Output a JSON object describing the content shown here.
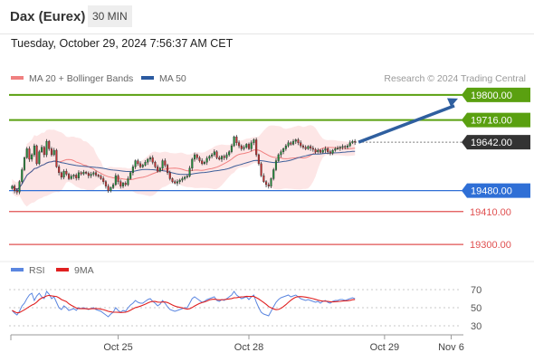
{
  "header": {
    "instrument": "Dax (Eurex)",
    "timeframe": "30 MIN",
    "datetime": "Tuesday, October 29, 2024 7:56:37 AM CET"
  },
  "chart_data": [
    {
      "type": "candlestick",
      "legend": [
        {
          "name": "MA 20 + Bollinger Bands",
          "color": "#f08080"
        },
        {
          "name": "MA 50",
          "color": "#2b5aa0"
        }
      ],
      "legend_placement": "top-left",
      "credit": "Research © 2024 Trading Central",
      "ylim": [
        19270,
        19830
      ],
      "x_ticks": [
        {
          "label": "Oct 25",
          "index": 43
        },
        {
          "label": "Oct 28",
          "index": 96
        },
        {
          "label": "Oct 29",
          "index": 151
        },
        {
          "label": "Nov 6",
          "index": 178
        }
      ],
      "levels": [
        {
          "label": "19800.00",
          "value": 19800,
          "kind": "resistance",
          "color": "#5aa010"
        },
        {
          "label": "19716.00",
          "value": 19716,
          "kind": "resistance",
          "color": "#5aa010"
        },
        {
          "label": "19642.00",
          "value": 19642,
          "kind": "last",
          "color": "#333333"
        },
        {
          "label": "19480.00",
          "value": 19480,
          "kind": "pivot",
          "color": "#2f6fd6"
        },
        {
          "label": "19410.00",
          "value": 19410,
          "kind": "support",
          "color": "#e05050"
        },
        {
          "label": "19300.00",
          "value": 19300,
          "kind": "support",
          "color": "#e05050"
        }
      ],
      "forecast_arrow": {
        "from": 19642,
        "to": 19800,
        "color": "#2f5f9f"
      },
      "close_series": [
        19495,
        19480,
        19475,
        19510,
        19550,
        19590,
        19620,
        19585,
        19600,
        19630,
        19570,
        19610,
        19625,
        19600,
        19645,
        19620,
        19600,
        19615,
        19560,
        19540,
        19525,
        19545,
        19535,
        19520,
        19528,
        19532,
        19522,
        19540,
        19536,
        19542,
        19538,
        19530,
        19535,
        19540,
        19532,
        19528,
        19520,
        19510,
        19495,
        19480,
        19490,
        19500,
        19530,
        19510,
        19495,
        19505,
        19500,
        19520,
        19540,
        19560,
        19580,
        19570,
        19560,
        19565,
        19575,
        19585,
        19590,
        19575,
        19560,
        19545,
        19555,
        19580,
        19565,
        19540,
        19520,
        19510,
        19505,
        19510,
        19515,
        19520,
        19525,
        19528,
        19555,
        19585,
        19600,
        19590,
        19580,
        19570,
        19575,
        19588,
        19595,
        19600,
        19610,
        19590,
        19585,
        19595,
        19590,
        19600,
        19610,
        19630,
        19660,
        19640,
        19630,
        19620,
        19625,
        19635,
        19620,
        19640,
        19650,
        19600,
        19570,
        19530,
        19510,
        19500,
        19495,
        19520,
        19550,
        19580,
        19600,
        19610,
        19620,
        19630,
        19640,
        19635,
        19645,
        19650,
        19640,
        19630,
        19625,
        19620,
        19628,
        19622,
        19618,
        19610,
        19615,
        19608,
        19615,
        19620,
        19610,
        19605,
        19615,
        19620,
        19622,
        19625,
        19628,
        19625,
        19630,
        19640,
        19645,
        19642
      ]
    },
    {
      "type": "line",
      "legend": [
        {
          "name": "RSI",
          "color": "#5b86e0"
        },
        {
          "name": "9MA",
          "color": "#e02020"
        }
      ],
      "ylim": [
        20,
        80
      ],
      "y_ticks": [
        70,
        50,
        30
      ],
      "rsi_series": [
        47,
        44,
        42,
        46,
        52,
        55,
        60,
        64,
        66,
        58,
        63,
        66,
        62,
        60,
        68,
        65,
        60,
        62,
        56,
        50,
        48,
        52,
        50,
        47,
        48,
        49,
        47,
        50,
        49,
        50,
        49,
        48,
        49,
        50,
        48,
        47,
        46,
        44,
        42,
        40,
        43,
        45,
        50,
        47,
        45,
        47,
        46,
        50,
        53,
        55,
        58,
        56,
        55,
        55,
        57,
        59,
        60,
        57,
        55,
        52,
        54,
        58,
        55,
        51,
        48,
        47,
        46,
        47,
        48,
        49,
        50,
        50,
        55,
        60,
        62,
        60,
        58,
        56,
        57,
        59,
        60,
        61,
        62,
        58,
        57,
        59,
        58,
        60,
        62,
        64,
        68,
        64,
        62,
        60,
        61,
        62,
        59,
        62,
        64,
        56,
        50,
        45,
        43,
        42,
        41,
        46,
        51,
        56,
        59,
        61,
        62,
        63,
        64,
        62,
        63,
        64,
        62,
        60,
        59,
        58,
        59,
        58,
        57,
        56,
        57,
        55,
        57,
        58,
        56,
        55,
        57,
        58,
        58,
        59,
        59,
        58,
        59,
        60,
        61,
        60
      ]
    }
  ]
}
